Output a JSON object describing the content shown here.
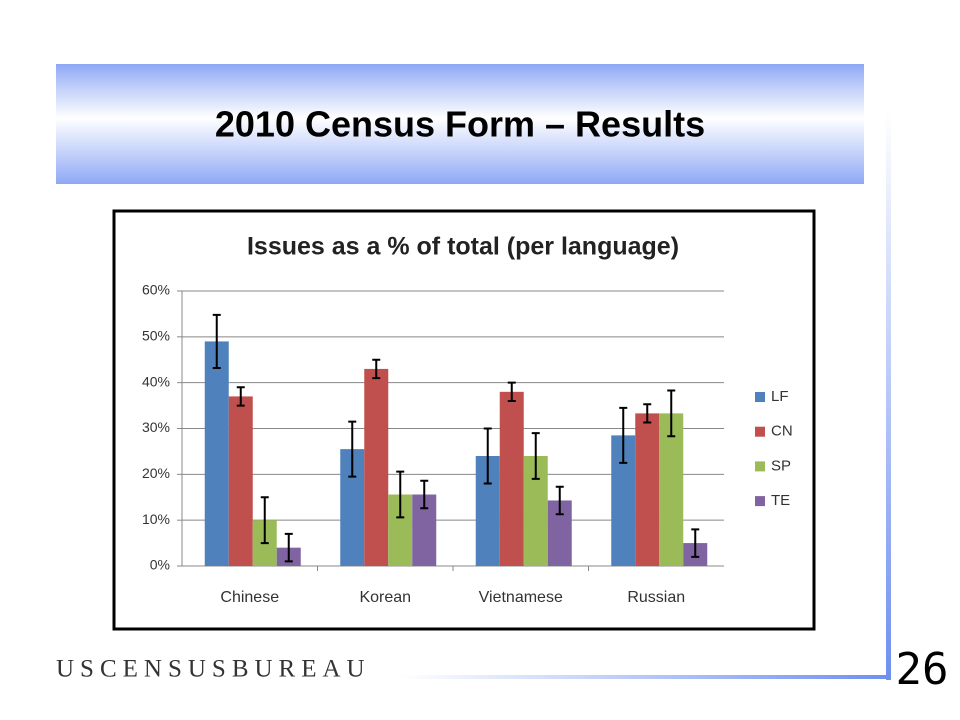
{
  "slide": {
    "title": "2010 Census Form – Results",
    "footer": "USCENSUSBUREAU",
    "page_number": "26"
  },
  "chart_data": {
    "type": "bar",
    "title": "Issues as a % of total (per language)",
    "categories": [
      "Chinese",
      "Korean",
      "Vietnamese",
      "Russian"
    ],
    "series": [
      {
        "name": "LF",
        "color": "#4f81bd",
        "values": [
          49,
          25.5,
          24,
          28.5
        ],
        "errors": [
          5.8,
          6,
          6,
          6
        ]
      },
      {
        "name": "CN",
        "color": "#c0504d",
        "values": [
          37,
          43,
          38,
          33.3
        ],
        "errors": [
          2,
          2,
          2,
          2
        ]
      },
      {
        "name": "SP",
        "color": "#9bbb59",
        "values": [
          10,
          15.6,
          24,
          33.3
        ],
        "errors": [
          5,
          5,
          5,
          5
        ]
      },
      {
        "name": "TE",
        "color": "#8064a2",
        "values": [
          4,
          15.6,
          14.3,
          5
        ],
        "errors": [
          3,
          3,
          3,
          3
        ]
      }
    ],
    "ylim": [
      0,
      60
    ],
    "yticks": [
      {
        "value": 0,
        "label": "0%"
      },
      {
        "value": 10,
        "label": "10%"
      },
      {
        "value": 20,
        "label": "20%"
      },
      {
        "value": 30,
        "label": "30%"
      },
      {
        "value": 40,
        "label": "40%"
      },
      {
        "value": 50,
        "label": "50%"
      },
      {
        "value": 60,
        "label": "60%"
      }
    ],
    "grid": true,
    "legend": "right"
  }
}
